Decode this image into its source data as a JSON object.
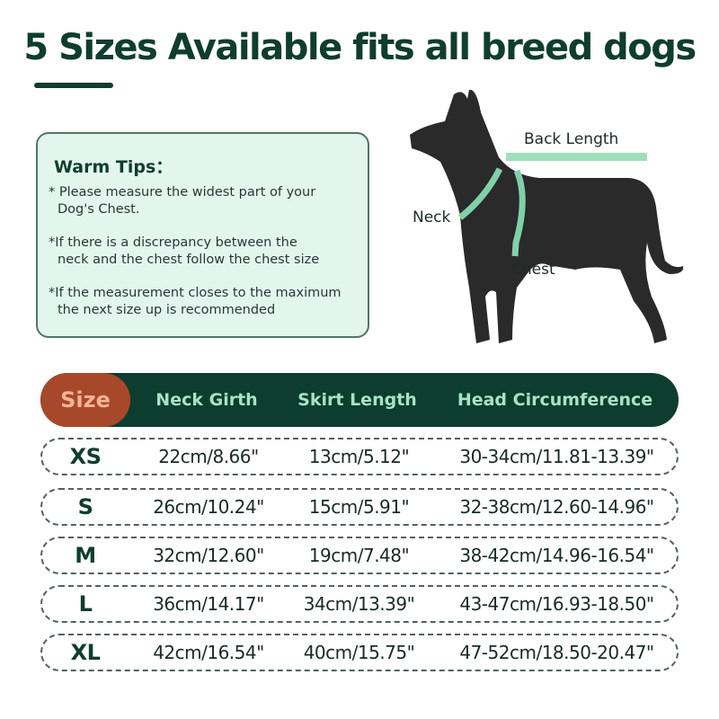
{
  "title": "5 Sizes Available fits all breed dogs",
  "tips": {
    "heading": "Warm Tips：",
    "items": [
      [
        "* Please measure the widest part of your",
        "Dog's Chest."
      ],
      [
        "*If there is a discrepancy between the",
        "neck and the chest follow the chest size"
      ],
      [
        "*If the measurement closes to the maximum",
        "the next size up is recommended"
      ]
    ]
  },
  "diagram": {
    "back_length": "Back Length",
    "neck": "Neck",
    "chest": "Chest"
  },
  "colors": {
    "dark_green": "#0d3d2f",
    "orange": "#a8482a",
    "tape": "#7fd1a8",
    "tips_bg": "#e3f6ee"
  },
  "table": {
    "headers": [
      "Size",
      "Neck Girth",
      "Skirt Length",
      "Head Circumference"
    ],
    "rows": [
      [
        "XS",
        "22cm/8.66\"",
        "13cm/5.12\"",
        "30-34cm/11.81-13.39\""
      ],
      [
        "S",
        "26cm/10.24\"",
        "15cm/5.91\"",
        "32-38cm/12.60-14.96\""
      ],
      [
        "M",
        "32cm/12.60\"",
        "19cm/7.48\"",
        "38-42cm/14.96-16.54\""
      ],
      [
        "L",
        "36cm/14.17\"",
        "34cm/13.39\"",
        "43-47cm/16.93-18.50\""
      ],
      [
        "XL",
        "42cm/16.54\"",
        "40cm/15.75\"",
        "47-52cm/18.50-20.47\""
      ]
    ]
  }
}
